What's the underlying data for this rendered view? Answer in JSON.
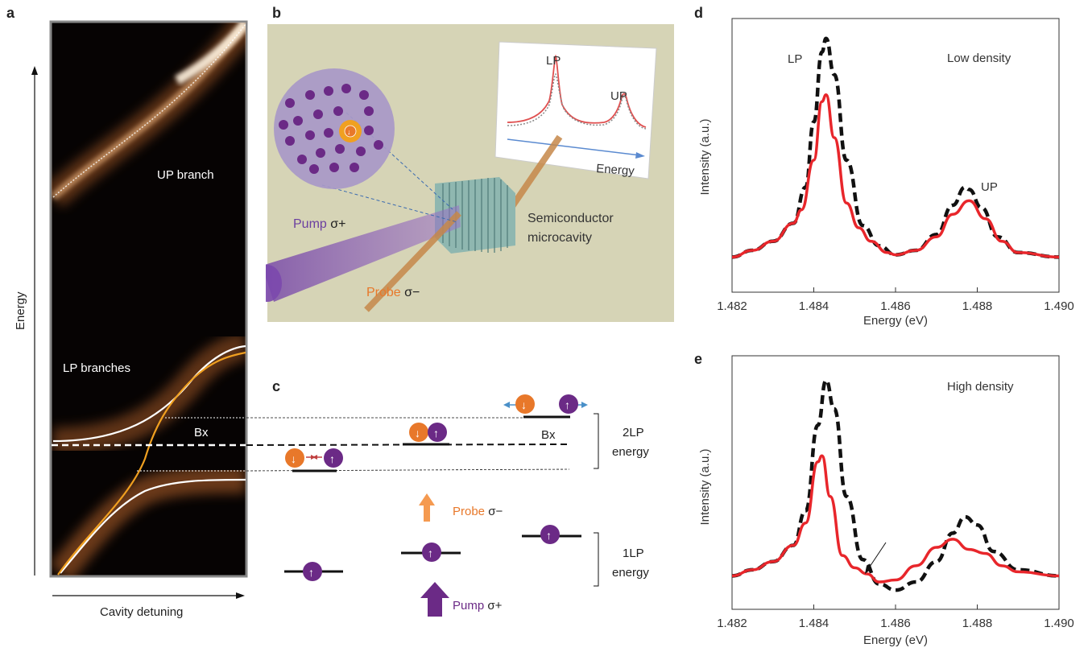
{
  "panels": {
    "a": {
      "letter": "a",
      "y_axis": "Energy",
      "x_axis": "Cavity detuning",
      "label_up": "UP branch",
      "label_lp": "LP branches",
      "label_bx": "Bx"
    },
    "b": {
      "letter": "b",
      "inset_lp": "LP",
      "inset_up": "UP",
      "inset_energy": "Energy",
      "pump_text": "Pump ",
      "pump_sigma": "σ+",
      "probe_text": "Probe ",
      "probe_sigma": "σ−",
      "device_line1": "Semiconductor",
      "device_line2": "microcavity"
    },
    "c": {
      "letter": "c",
      "label_2lp_1": "2LP",
      "label_2lp_2": "energy",
      "label_1lp_1": "1LP",
      "label_1lp_2": "energy",
      "label_bx": "Bx",
      "probe_text": "Probe ",
      "probe_sigma": "σ−",
      "pump_text": "Pump ",
      "pump_sigma": "σ+"
    },
    "d": {
      "letter": "d",
      "label_lp": "LP",
      "label_up": "UP",
      "annotation": "Low density"
    },
    "e": {
      "letter": "e",
      "annotation": "High density"
    }
  },
  "colors": {
    "red": "#e8262b",
    "black": "#111111",
    "orange": "#e8782a",
    "purple": "#6b2a86",
    "beige": "#d6d4b6"
  },
  "chart_data": [
    {
      "type": "line",
      "panel": "d",
      "xlabel": "Energy (eV)",
      "ylabel": "Intensity (a.u.)",
      "xlim": [
        1.482,
        1.49
      ],
      "ylim": [
        0,
        1
      ],
      "x_ticks": [
        "1.482",
        "1.484",
        "1.486",
        "1.488",
        "1.490"
      ],
      "grid": false,
      "series": [
        {
          "style": "dashed-black",
          "x": [
            1.482,
            1.4825,
            1.483,
            1.4835,
            1.4838,
            1.484,
            1.4842,
            1.4843,
            1.4845,
            1.4848,
            1.4852,
            1.4856,
            1.486,
            1.4865,
            1.487,
            1.4874,
            1.4877,
            1.4878,
            1.4881,
            1.4885,
            1.489,
            1.49
          ],
          "y": [
            0.02,
            0.05,
            0.09,
            0.17,
            0.33,
            0.62,
            0.93,
            0.99,
            0.83,
            0.45,
            0.16,
            0.07,
            0.03,
            0.05,
            0.12,
            0.25,
            0.33,
            0.32,
            0.24,
            0.11,
            0.04,
            0.02
          ]
        },
        {
          "style": "solid-red",
          "x": [
            1.482,
            1.4825,
            1.483,
            1.4835,
            1.4837,
            1.484,
            1.4842,
            1.4843,
            1.4845,
            1.4848,
            1.4851,
            1.4854,
            1.4858,
            1.486,
            1.4865,
            1.487,
            1.4874,
            1.4878,
            1.4882,
            1.4886,
            1.489,
            1.49
          ],
          "y": [
            0.02,
            0.05,
            0.09,
            0.17,
            0.23,
            0.45,
            0.71,
            0.74,
            0.55,
            0.26,
            0.15,
            0.09,
            0.04,
            0.03,
            0.05,
            0.11,
            0.21,
            0.27,
            0.19,
            0.09,
            0.04,
            0.02
          ]
        }
      ]
    },
    {
      "type": "line",
      "panel": "e",
      "xlabel": "Energy (eV)",
      "ylabel": "Intensity (a.u.)",
      "xlim": [
        1.482,
        1.49
      ],
      "ylim": [
        0,
        1
      ],
      "x_ticks": [
        "1.482",
        "1.484",
        "1.486",
        "1.488",
        "1.490"
      ],
      "grid": false,
      "series": [
        {
          "style": "dashed-black",
          "x": [
            1.482,
            1.4825,
            1.483,
            1.4835,
            1.4838,
            1.4841,
            1.4843,
            1.4845,
            1.4848,
            1.4852,
            1.4856,
            1.486,
            1.4865,
            1.487,
            1.4874,
            1.4877,
            1.488,
            1.4884,
            1.489,
            1.49
          ],
          "y": [
            0.01,
            0.04,
            0.08,
            0.16,
            0.33,
            0.75,
            0.97,
            0.83,
            0.4,
            0.09,
            -0.03,
            -0.06,
            -0.02,
            0.08,
            0.22,
            0.3,
            0.26,
            0.13,
            0.04,
            0.01
          ]
        },
        {
          "style": "solid-red",
          "x": [
            1.482,
            1.4825,
            1.483,
            1.4835,
            1.4838,
            1.4841,
            1.4842,
            1.4844,
            1.4847,
            1.485,
            1.4853,
            1.4856,
            1.486,
            1.4865,
            1.487,
            1.4874,
            1.4878,
            1.4882,
            1.4886,
            1.489,
            1.49
          ],
          "y": [
            0.01,
            0.04,
            0.08,
            0.16,
            0.27,
            0.57,
            0.6,
            0.4,
            0.11,
            0.05,
            0.02,
            -0.02,
            -0.01,
            0.06,
            0.15,
            0.19,
            0.14,
            0.12,
            0.06,
            0.03,
            0.01
          ]
        }
      ],
      "annotations": [
        "arrow pointing to crossing near 1.4852 eV"
      ]
    }
  ]
}
